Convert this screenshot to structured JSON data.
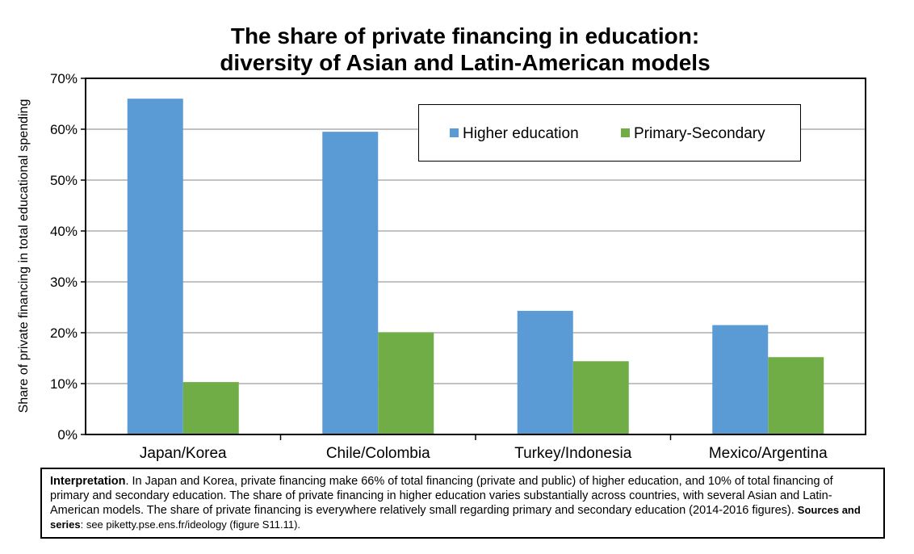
{
  "title_line1": "The share of private financing in education:",
  "title_line2": "diversity of Asian and Latin-American models",
  "chart_data": {
    "type": "bar",
    "categories": [
      "Japan/Korea",
      "Chile/Colombia",
      "Turkey/Indonesia",
      "Mexico/Argentina"
    ],
    "series": [
      {
        "name": "Higher education",
        "values": [
          66,
          59.5,
          24.3,
          21.5
        ],
        "color": "#5b9bd5"
      },
      {
        "name": "Primary-Secondary",
        "values": [
          10.3,
          20.1,
          14.4,
          15.2
        ],
        "color": "#70ad47"
      }
    ],
    "ylabel": "Share of private financing in total educational spending",
    "ylim": [
      0,
      70
    ],
    "yticks": [
      0,
      10,
      20,
      30,
      40,
      50,
      60,
      70
    ],
    "ytick_labels": [
      "0%",
      "10%",
      "20%",
      "30%",
      "40%",
      "50%",
      "60%",
      "70%"
    ],
    "grid": true,
    "legend_position": "top-right"
  },
  "note": {
    "interpretation_label": "Interpretation",
    "interpretation_text": ". In Japan and Korea, private financing make 66% of total financing (private and public) of higher education, and 10% of total financing of primary and secondary education. The share of private financing in higher education varies substantially across countries, with several Asian and Latin-American models. The share of private financing is everywhere relatively small regarding primary and secondary education (2014-2016 figures). ",
    "sources_label": "Sources and series",
    "sources_text": ": see piketty.pse.ens.fr/ideology (figure S11.11)."
  }
}
